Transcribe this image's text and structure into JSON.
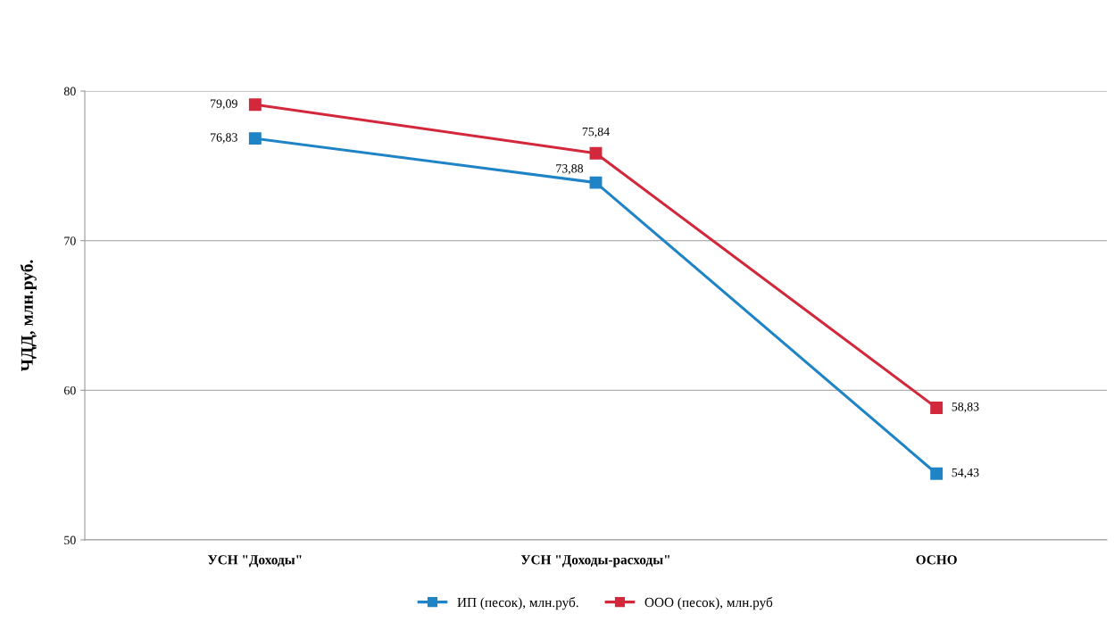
{
  "chart_data": {
    "type": "line",
    "ylabel": "ЧДД, млн.руб.",
    "categories": [
      "УСН \"Доходы\"",
      "УСН \"Доходы-расходы\"",
      "ОСНО"
    ],
    "series": [
      {
        "name": "ИП (песок), млн.руб.",
        "color": "#1f84c6",
        "values": [
          76.83,
          73.88,
          54.43
        ],
        "value_labels": [
          "76,83",
          "73,88",
          "54,43"
        ]
      },
      {
        "name": "ООО (песок), млн.руб",
        "color": "#d3283c",
        "values": [
          79.09,
          75.84,
          58.83
        ],
        "value_labels": [
          "79,09",
          "75,84",
          "58,83"
        ]
      }
    ],
    "ylim": [
      50,
      80
    ],
    "yticks": [
      50,
      60,
      70,
      80
    ],
    "grid": "y",
    "legend": "bottom",
    "marker": "square",
    "line_style": "solid"
  }
}
